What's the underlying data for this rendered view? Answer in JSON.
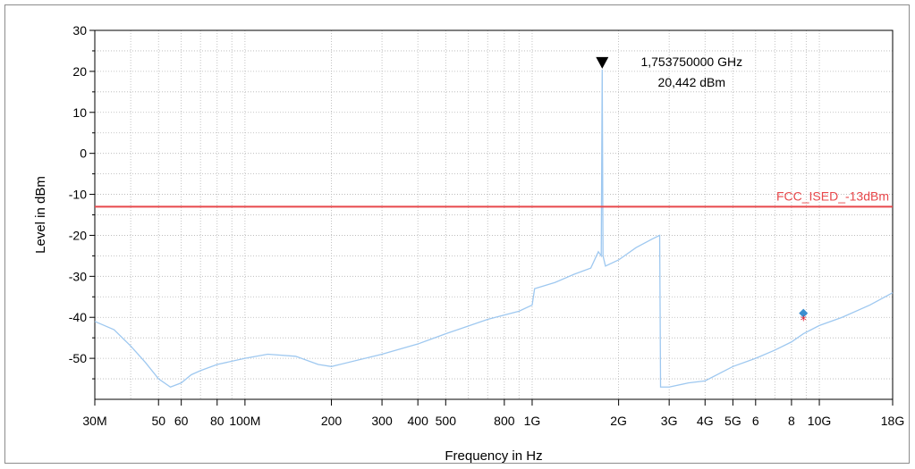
{
  "chart_data": {
    "type": "line",
    "xlabel": "Frequency in Hz",
    "ylabel": "Level in dBm",
    "x_scale": "log",
    "xlim": [
      30000000,
      18000000000
    ],
    "ylim": [
      -60,
      30
    ],
    "grid": true,
    "y_ticks": [
      30,
      20,
      10,
      0,
      -10,
      -20,
      -30,
      -40,
      -50
    ],
    "y_tick_labels": [
      "30",
      "20",
      "10",
      "0",
      "-10",
      "-20",
      "-30",
      "-40",
      "-50"
    ],
    "x_tick_labels": [
      {
        "x": 30000000,
        "label": "30M"
      },
      {
        "x": 50000000,
        "label": "50"
      },
      {
        "x": 60000000,
        "label": "60"
      },
      {
        "x": 80000000,
        "label": "80"
      },
      {
        "x": 100000000,
        "label": "100M"
      },
      {
        "x": 200000000,
        "label": "200"
      },
      {
        "x": 300000000,
        "label": "300"
      },
      {
        "x": 400000000,
        "label": "400"
      },
      {
        "x": 500000000,
        "label": "500"
      },
      {
        "x": 800000000,
        "label": "800"
      },
      {
        "x": 1000000000,
        "label": "1G"
      },
      {
        "x": 2000000000,
        "label": "2G"
      },
      {
        "x": 3000000000,
        "label": "3G"
      },
      {
        "x": 4000000000,
        "label": "4G"
      },
      {
        "x": 5000000000,
        "label": "5G"
      },
      {
        "x": 6000000000,
        "label": "6"
      },
      {
        "x": 8000000000,
        "label": "8"
      },
      {
        "x": 10000000000,
        "label": "10G"
      },
      {
        "x": 18000000000,
        "label": "18G"
      }
    ],
    "limit_line": {
      "name": "FCC_ISED_-13dBm",
      "y": -13,
      "color": "#e8484b"
    },
    "series": [
      {
        "color": "#9ec8f0",
        "x": [
          30000000,
          35000000,
          40000000,
          45000000,
          50000000,
          55000000,
          60000000,
          65000000,
          70000000,
          80000000,
          100000000,
          120000000,
          150000000,
          180000000,
          200000000,
          300000000,
          400000000,
          500000000,
          700000000,
          900000000,
          1000000000,
          1020000000,
          1200000000,
          1400000000,
          1600000000,
          1700000000,
          1740000000,
          1753750000,
          1765000000,
          1800000000,
          2000000000,
          2300000000,
          2600000000,
          2780000000,
          2800000000,
          3000000000,
          3500000000,
          4000000000,
          5000000000,
          6000000000,
          7000000000,
          8000000000,
          8800000000,
          10000000000,
          12000000000,
          15000000000,
          18000000000
        ],
        "y": [
          -41,
          -43,
          -47,
          -51,
          -55,
          -57,
          -56,
          -54,
          -53,
          -51.5,
          -50,
          -49,
          -49.5,
          -51.5,
          -52,
          -49,
          -46.5,
          -44,
          -40.5,
          -38.5,
          -37,
          -33,
          -31.5,
          -29.5,
          -28,
          -24,
          -25,
          20.442,
          -25,
          -27.5,
          -26,
          -23,
          -21,
          -20,
          -57,
          -57,
          -56,
          -55.5,
          -52,
          -50,
          -48,
          -46,
          -44,
          -42,
          -40,
          -37,
          -34
        ]
      }
    ],
    "markers": [
      {
        "type": "peak",
        "x": 1753750000,
        "y": 20.442,
        "color": "#000000"
      },
      {
        "type": "diamond",
        "x": 8800000000,
        "y": -39,
        "color": "#3b8fd0"
      },
      {
        "type": "star",
        "x": 8800000000,
        "y": -40.5,
        "color": "#e02030"
      }
    ],
    "annotation": {
      "freq": "1,753750000 GHz",
      "level": "20,442 dBm"
    }
  }
}
